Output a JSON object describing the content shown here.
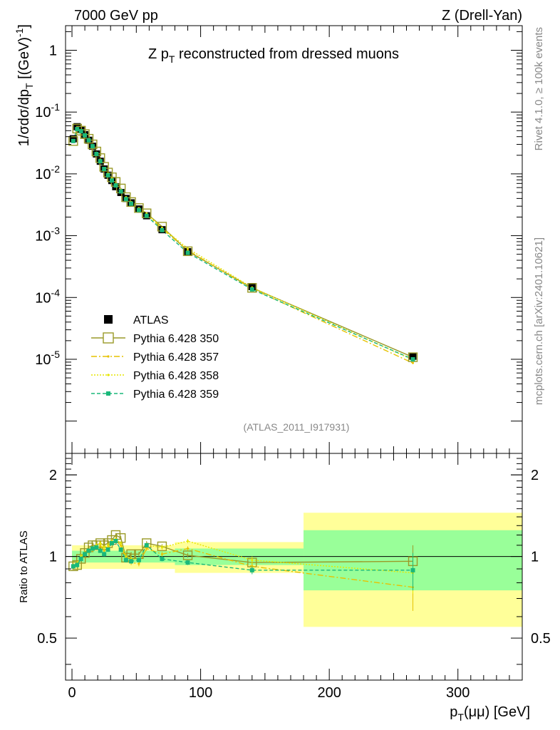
{
  "header": {
    "left": "7000 GeV pp",
    "right": "Z (Drell-Yan)"
  },
  "side_text": {
    "rivet": "Rivet 4.1.0, ≥ 100k events",
    "mcplots": "mcplots.cern.ch [arXiv:2401.10621]"
  },
  "chart_data": [
    {
      "type": "scatter",
      "panel": "main",
      "title": "Z p_T reconstructed from dressed muons",
      "title_main": "Z p",
      "title_sub": "T",
      "title_rest": " reconstructed from dressed muons",
      "ylabel": "1/σdσ/dp_T [(GeV)^-1]",
      "ylabel_main": "1/σdσ/dp",
      "ylabel_sub": "T",
      "ylabel_units": " [(GeV)",
      "ylabel_exp": "-1",
      "ylabel_close": "]",
      "yscale": "log",
      "ylim": [
        3e-07,
        2.5
      ],
      "xlim": [
        -5,
        350
      ],
      "ytick_labels": [
        {
          "base": "10",
          "exp": "-5",
          "v": 1e-05
        },
        {
          "base": "10",
          "exp": "-4",
          "v": 0.0001
        },
        {
          "base": "10",
          "exp": "-3",
          "v": 0.001
        },
        {
          "base": "10",
          "exp": "-2",
          "v": 0.01
        },
        {
          "base": "10",
          "exp": "-1",
          "v": 0.1
        },
        {
          "base": "1",
          "exp": "",
          "v": 1
        }
      ],
      "reference": "(ATLAS_2011_I917931)",
      "legend_position": "bottom-left",
      "x": [
        1,
        4,
        7,
        10,
        13,
        16,
        19,
        22,
        25,
        28,
        31,
        34,
        38,
        42,
        46,
        52,
        58,
        70,
        90,
        140,
        265
      ],
      "series": [
        {
          "name": "ATLAS",
          "color": "#000000",
          "style": "data",
          "values": [
            0.037,
            0.058,
            0.052,
            0.043,
            0.035,
            0.028,
            0.021,
            0.016,
            0.012,
            0.0095,
            0.0078,
            0.0062,
            0.005,
            0.004,
            0.0034,
            0.0027,
            0.0021,
            0.00125,
            0.00055,
            0.00015,
            1.12e-05
          ]
        },
        {
          "name": "Pythia 6.428 350",
          "color": "#9a9a28",
          "style": "solid-open-square",
          "values": [
            0.034,
            0.054,
            0.05,
            0.044,
            0.037,
            0.03,
            0.023,
            0.018,
            0.013,
            0.0105,
            0.0088,
            0.0074,
            0.0058,
            0.0042,
            0.0035,
            0.0028,
            0.0023,
            0.0014,
            0.00056,
            0.000143,
            1.08e-05
          ]
        },
        {
          "name": "Pythia 6.428 357",
          "color": "#e6c200",
          "style": "dashdot",
          "values": [
            0.034,
            0.054,
            0.049,
            0.043,
            0.036,
            0.029,
            0.022,
            0.017,
            0.0125,
            0.01,
            0.0082,
            0.0068,
            0.0054,
            0.0041,
            0.0034,
            0.0027,
            0.0022,
            0.0013,
            0.00058,
            0.000138,
            8.7e-06
          ]
        },
        {
          "name": "Pythia 6.428 358",
          "color": "#e6e600",
          "style": "dotted",
          "values": [
            0.034,
            0.054,
            0.049,
            0.043,
            0.036,
            0.029,
            0.022,
            0.017,
            0.0125,
            0.0102,
            0.0084,
            0.0069,
            0.0055,
            0.0042,
            0.0035,
            0.0028,
            0.0023,
            0.00135,
            0.00062,
            0.000145,
            9.8e-06
          ]
        },
        {
          "name": "Pythia 6.428 359",
          "color": "#1ab87a",
          "style": "dashed-filled-square",
          "values": [
            0.034,
            0.053,
            0.049,
            0.042,
            0.035,
            0.028,
            0.021,
            0.016,
            0.012,
            0.0095,
            0.0078,
            0.0065,
            0.0052,
            0.0039,
            0.0033,
            0.0026,
            0.0021,
            0.00123,
            0.00053,
            0.000135,
            1e-05
          ]
        }
      ]
    },
    {
      "type": "line",
      "panel": "ratio",
      "ylabel": "Ratio to ATLAS",
      "xlabel": "p_T(μμ) [GeV]",
      "xlabel_main": "p",
      "xlabel_sub": "T",
      "xlabel_rest": "(μμ) [GeV]",
      "yscale": "log",
      "ylim": [
        0.35,
        2.4
      ],
      "xlim": [
        -5,
        350
      ],
      "ytick_labels": [
        {
          "label": "0.5",
          "v": 0.5
        },
        {
          "label": "1",
          "v": 1
        },
        {
          "label": "2",
          "v": 2
        }
      ],
      "xtick_labels": [
        {
          "label": "0",
          "v": 0
        },
        {
          "label": "100",
          "v": 100
        },
        {
          "label": "200",
          "v": 200
        },
        {
          "label": "300",
          "v": 300
        }
      ],
      "bins": [
        {
          "lo": 0,
          "hi": 80,
          "y_in": 0.1,
          "g_in": 0.05
        },
        {
          "lo": 80,
          "hi": 180,
          "y_in": 0.13,
          "g_in": 0.07
        },
        {
          "lo": 180,
          "hi": 350,
          "y_in": 0.45,
          "g_in": 0.25
        }
      ],
      "x": [
        1,
        4,
        7,
        10,
        13,
        16,
        19,
        22,
        25,
        28,
        31,
        34,
        38,
        42,
        46,
        52,
        58,
        70,
        90,
        140,
        265
      ],
      "series": [
        {
          "name": "Pythia 6.428 350",
          "color": "#9a9a28",
          "values": [
            0.92,
            0.93,
            0.98,
            1.03,
            1.08,
            1.1,
            1.1,
            1.12,
            1.1,
            1.12,
            1.15,
            1.2,
            1.17,
            0.99,
            1.02,
            1.02,
            1.12,
            1.09,
            1.01,
            0.95,
            0.96
          ]
        },
        {
          "name": "Pythia 6.428 357",
          "color": "#e6c200",
          "values": [
            0.92,
            0.94,
            1.0,
            1.02,
            1.04,
            1.06,
            1.08,
            1.1,
            1.05,
            1.08,
            1.12,
            1.14,
            1.1,
            0.98,
            0.95,
            0.94,
            1.07,
            1.02,
            1.07,
            0.92,
            0.77
          ]
        },
        {
          "name": "Pythia 6.428 358",
          "color": "#e6e600",
          "values": [
            0.92,
            0.94,
            1.0,
            1.03,
            1.05,
            1.07,
            1.1,
            1.12,
            1.08,
            1.1,
            1.14,
            1.16,
            1.12,
            1.0,
            0.98,
            0.97,
            1.1,
            1.08,
            1.14,
            0.97,
            0.87
          ]
        },
        {
          "name": "Pythia 6.428 359",
          "color": "#1ab87a",
          "values": [
            0.92,
            0.93,
            0.98,
            1.02,
            1.05,
            1.07,
            1.08,
            1.05,
            1.02,
            1.06,
            1.12,
            1.14,
            1.06,
            0.97,
            0.96,
            0.97,
            1.1,
            0.98,
            0.95,
            0.89,
            0.89
          ]
        }
      ]
    }
  ]
}
